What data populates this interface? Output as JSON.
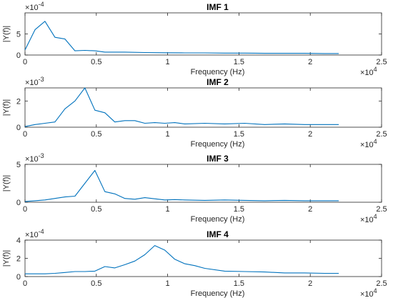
{
  "chart_data": [
    {
      "type": "line",
      "title": "IMF 1",
      "xlabel": "Frequency (Hz)",
      "ylabel": "|Y(f)|",
      "x_exponent": "4",
      "y_exponent": "-4",
      "xlim": [
        0,
        25000
      ],
      "ylim": [
        0,
        10
      ],
      "x_ticks": [
        "0",
        "0.5",
        "1",
        "1.5",
        "2",
        "2.5"
      ],
      "y_ticks": [
        "0",
        "5"
      ],
      "color": "#0072BD",
      "grid": false,
      "series": [
        {
          "x": [
            0,
            700,
            1400,
            2100,
            2800,
            3500,
            4200,
            4900,
            5600,
            7000,
            8400,
            9800,
            11200,
            12600,
            14000,
            15400,
            16800,
            18200,
            19600,
            21000,
            22000
          ],
          "y": [
            1.2,
            6,
            8,
            4.2,
            3.8,
            1.0,
            1.1,
            1.0,
            0.7,
            0.7,
            0.6,
            0.55,
            0.5,
            0.5,
            0.45,
            0.45,
            0.4,
            0.4,
            0.4,
            0.35,
            0.35
          ]
        }
      ]
    },
    {
      "type": "line",
      "title": "IMF 2",
      "xlabel": "Frequency (Hz)",
      "ylabel": "|Y(f)|",
      "x_exponent": "4",
      "y_exponent": "-3",
      "xlim": [
        0,
        25000
      ],
      "ylim": [
        0,
        3
      ],
      "x_ticks": [
        "0",
        "0.5",
        "1",
        "1.5",
        "2",
        "2.5"
      ],
      "y_ticks": [
        "0",
        "2"
      ],
      "color": "#0072BD",
      "grid": false,
      "series": [
        {
          "x": [
            0,
            700,
            1400,
            2100,
            2800,
            3500,
            4200,
            4900,
            5600,
            6300,
            7000,
            7700,
            8400,
            9100,
            9800,
            10500,
            11200,
            12600,
            14000,
            15400,
            16800,
            18200,
            19600,
            21000,
            22000
          ],
          "y": [
            0.05,
            0.2,
            0.3,
            0.4,
            1.4,
            2.0,
            3.0,
            1.3,
            1.1,
            0.4,
            0.5,
            0.5,
            0.3,
            0.35,
            0.3,
            0.35,
            0.25,
            0.3,
            0.25,
            0.3,
            0.2,
            0.25,
            0.2,
            0.2,
            0.2
          ]
        }
      ]
    },
    {
      "type": "line",
      "title": "IMF 3",
      "xlabel": "Frequency (Hz)",
      "ylabel": "|Y(f)|",
      "x_exponent": "4",
      "y_exponent": "-3",
      "xlim": [
        0,
        25000
      ],
      "ylim": [
        0,
        5
      ],
      "x_ticks": [
        "0",
        "0.5",
        "1",
        "1.5",
        "2",
        "2.5"
      ],
      "y_ticks": [
        "0",
        "5"
      ],
      "color": "#0072BD",
      "grid": false,
      "series": [
        {
          "x": [
            0,
            700,
            1400,
            2100,
            2800,
            3500,
            4200,
            4900,
            5600,
            6300,
            7000,
            7700,
            8400,
            9100,
            9800,
            10500,
            11200,
            12600,
            14000,
            15400,
            16800,
            18200,
            19600,
            21000,
            22000
          ],
          "y": [
            0.1,
            0.2,
            0.3,
            0.5,
            0.7,
            0.8,
            2.5,
            4.2,
            1.4,
            1.1,
            0.5,
            0.4,
            0.6,
            0.45,
            0.3,
            0.35,
            0.3,
            0.25,
            0.3,
            0.25,
            0.2,
            0.25,
            0.2,
            0.2,
            0.2
          ]
        }
      ]
    },
    {
      "type": "line",
      "title": "IMF 4",
      "xlabel": "Frequency (Hz)",
      "ylabel": "|Y(f)|",
      "x_exponent": "4",
      "y_exponent": "-4",
      "xlim": [
        0,
        25000
      ],
      "ylim": [
        0,
        4
      ],
      "x_ticks": [
        "0",
        "0.5",
        "1",
        "1.5",
        "2",
        "2.5"
      ],
      "y_ticks": [
        "0",
        "2",
        "4"
      ],
      "color": "#0072BD",
      "grid": false,
      "series": [
        {
          "x": [
            0,
            700,
            1400,
            2100,
            2800,
            3500,
            4200,
            4900,
            5600,
            6300,
            7000,
            7700,
            8400,
            9100,
            9800,
            10500,
            11200,
            11900,
            12600,
            14000,
            15400,
            16800,
            18200,
            19600,
            21000,
            22000
          ],
          "y": [
            0.3,
            0.3,
            0.3,
            0.35,
            0.45,
            0.55,
            0.55,
            0.6,
            1.1,
            0.95,
            1.3,
            1.7,
            2.4,
            3.4,
            2.9,
            1.9,
            1.4,
            1.2,
            0.9,
            0.6,
            0.55,
            0.5,
            0.4,
            0.4,
            0.35,
            0.35
          ]
        }
      ]
    }
  ]
}
